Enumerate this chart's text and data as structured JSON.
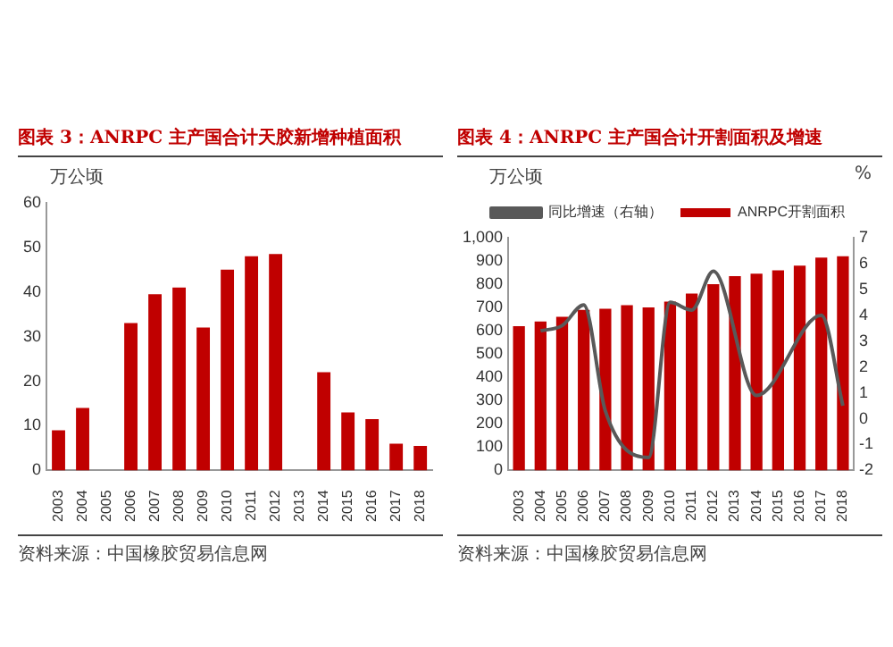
{
  "chart_data": [
    {
      "type": "bar",
      "title": "图表 3：ANRPC 主产国合计天胶新增种植面积",
      "ylabel": "万公顷",
      "categories": [
        "2003",
        "2004",
        "2005",
        "2006",
        "2007",
        "2008",
        "2009",
        "2010",
        "2011",
        "2012",
        "2013",
        "2014",
        "2015",
        "2016",
        "2017",
        "2018"
      ],
      "series": [
        {
          "color": "#c00000",
          "values": [
            9,
            14,
            null,
            33,
            39.5,
            41,
            32,
            45,
            48,
            48.5,
            null,
            22,
            13,
            11.5,
            6,
            5.5
          ]
        }
      ],
      "ylim": [
        0,
        60
      ],
      "yticks": [
        0,
        10,
        20,
        30,
        40,
        50,
        60
      ],
      "legend": false,
      "annotations": [
        "资料来源：中国橡胶贸易信息网"
      ]
    },
    {
      "type": "bar",
      "title": "图表 4：ANRPC 主产国合计开割面积及增速",
      "ylabel": "万公顷",
      "y2label": "%",
      "categories": [
        "2003",
        "2004",
        "2005",
        "2006",
        "2007",
        "2008",
        "2009",
        "2010",
        "2011",
        "2012",
        "2013",
        "2014",
        "2015",
        "2016",
        "2017",
        "2018"
      ],
      "series": [
        {
          "name": "ANRPC开割面积",
          "color": "#c00000",
          "values": [
            620,
            640,
            660,
            690,
            695,
            710,
            700,
            725,
            760,
            800,
            835,
            845,
            860,
            880,
            915,
            920
          ]
        },
        {
          "name": "同比增速（右轴）",
          "type": "line",
          "axis": "y2",
          "color": "#595959",
          "marker": "none",
          "values": [
            null,
            3.4,
            3.6,
            4.4,
            0.3,
            null,
            -1.5,
            4.5,
            4.2,
            5.7,
            null,
            0.9,
            null,
            null,
            4.0,
            0.5
          ]
        }
      ],
      "ylim": [
        0,
        1000
      ],
      "yticks": [
        0,
        100,
        200,
        300,
        400,
        500,
        600,
        700,
        800,
        900,
        {
          "value": 1000,
          "label": "1,000"
        }
      ],
      "y2lim": [
        -2,
        7
      ],
      "y2ticks": [
        -2,
        -1,
        0,
        1,
        2,
        3,
        4,
        5,
        6,
        7
      ],
      "legend": "top",
      "annotations": [
        "资料来源：中国橡胶贸易信息网"
      ]
    }
  ]
}
